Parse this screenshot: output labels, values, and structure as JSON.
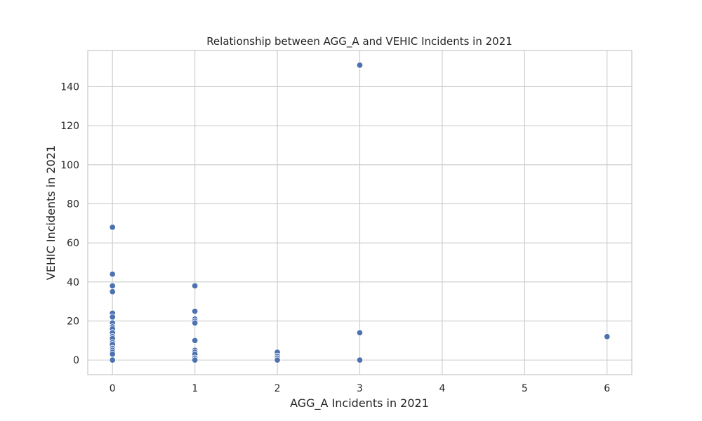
{
  "chart_data": {
    "type": "scatter",
    "title": "Relationship between AGG_A and VEHIC Incidents in 2021",
    "xlabel": "AGG_A Incidents in 2021",
    "ylabel": "VEHIC Incidents in 2021",
    "xlim": [
      -0.3,
      6.3
    ],
    "ylim": [
      -7.5,
      158.5
    ],
    "xticks": [
      0,
      1,
      2,
      3,
      4,
      5,
      6
    ],
    "yticks": [
      0,
      20,
      40,
      60,
      80,
      100,
      120,
      140
    ],
    "grid": true,
    "marker_color": "#4c72b0",
    "points": [
      [
        0,
        68
      ],
      [
        0,
        44
      ],
      [
        0,
        38
      ],
      [
        0,
        35
      ],
      [
        0,
        24
      ],
      [
        0,
        22
      ],
      [
        0,
        19
      ],
      [
        0,
        17
      ],
      [
        0,
        16
      ],
      [
        0,
        14
      ],
      [
        0,
        12
      ],
      [
        0,
        11
      ],
      [
        0,
        9
      ],
      [
        0,
        8
      ],
      [
        0,
        6
      ],
      [
        0,
        5
      ],
      [
        0,
        4
      ],
      [
        0,
        3
      ],
      [
        0,
        0
      ],
      [
        1,
        38
      ],
      [
        1,
        25
      ],
      [
        1,
        21
      ],
      [
        1,
        20
      ],
      [
        1,
        19
      ],
      [
        1,
        10
      ],
      [
        1,
        5
      ],
      [
        1,
        4
      ],
      [
        1,
        3
      ],
      [
        1,
        1
      ],
      [
        1,
        0
      ],
      [
        2,
        4
      ],
      [
        2,
        2
      ],
      [
        2,
        1
      ],
      [
        2,
        0
      ],
      [
        3,
        151
      ],
      [
        3,
        14
      ],
      [
        3,
        0
      ],
      [
        6,
        12
      ]
    ]
  }
}
